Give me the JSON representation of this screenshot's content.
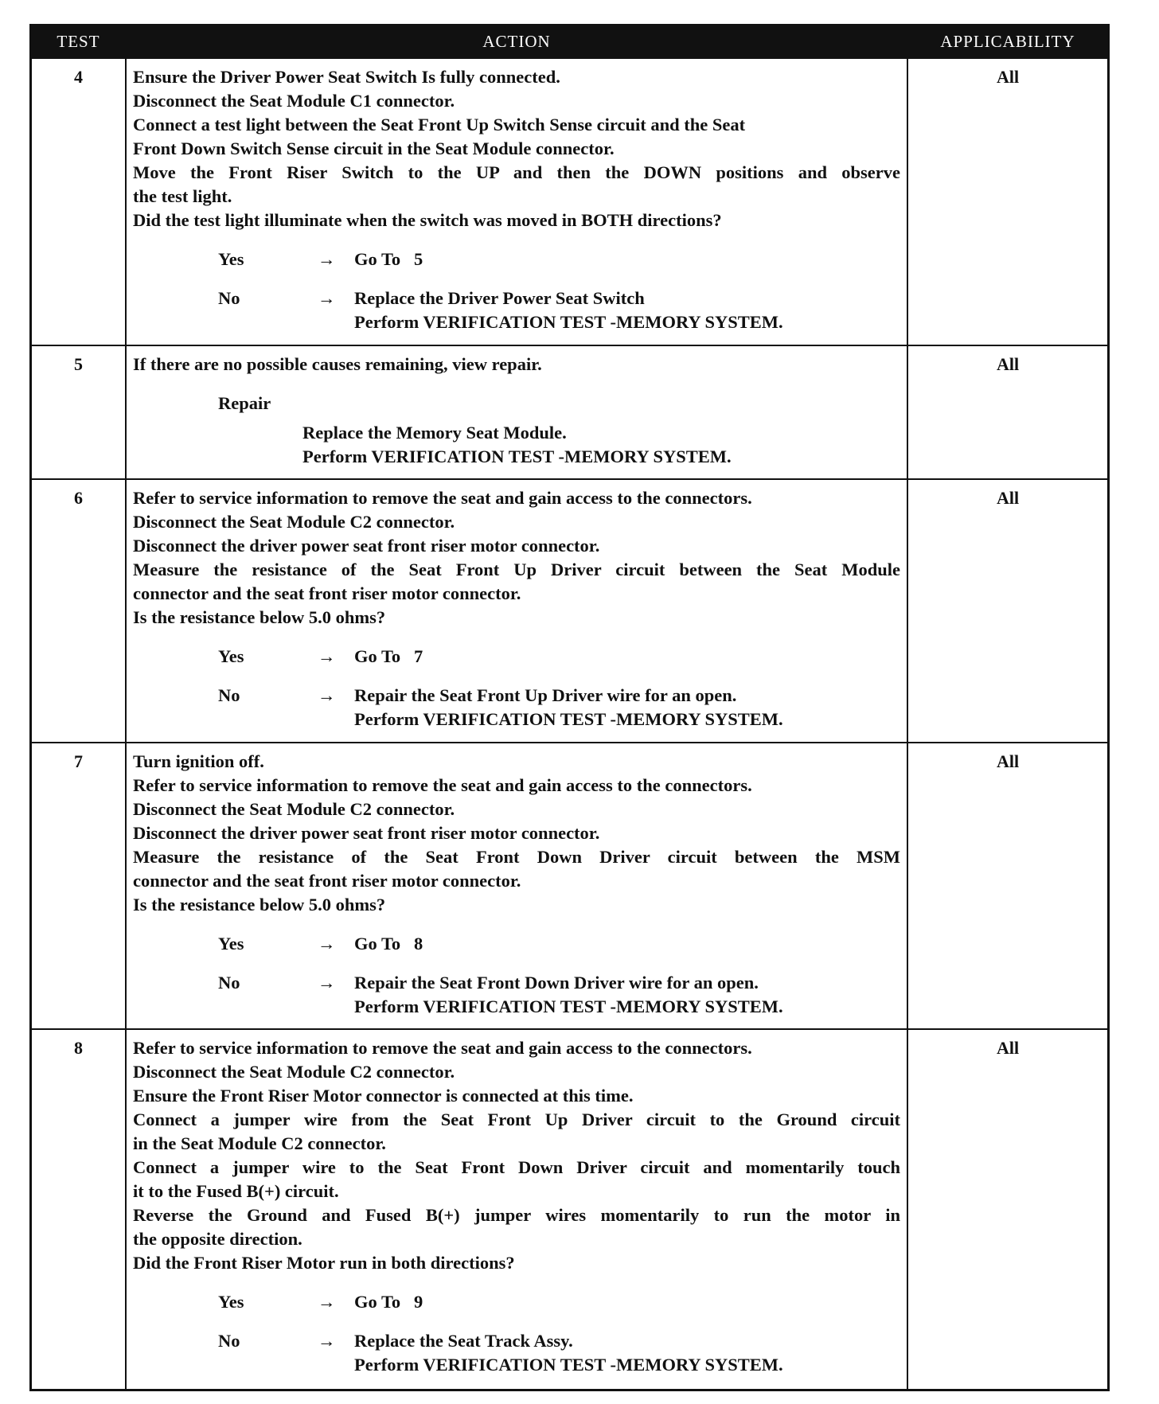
{
  "headers": {
    "test": "TEST",
    "action": "ACTION",
    "applicability": "APPLICABILITY"
  },
  "arrow": "→",
  "rows": [
    {
      "test": "4",
      "applicability": "All",
      "lines": [
        "Ensure the Driver Power Seat Switch Is fully connected.",
        "Disconnect the Seat Module C1 connector.",
        "Connect a test light between the Seat Front Up Switch Sense circuit and the Seat",
        "Front Down Switch Sense circuit in the Seat Module connector.",
        "Move the Front Riser Switch to the UP and then the DOWN positions and observe",
        "the test light.",
        "Did the test light illuminate when the switch was moved in BOTH directions?"
      ],
      "yes": {
        "label": "Yes",
        "result": [
          "Go To   5"
        ]
      },
      "no": {
        "label": "No",
        "result": [
          "Replace the Driver Power Seat Switch",
          "Perform VERIFICATION TEST -MEMORY SYSTEM."
        ]
      }
    },
    {
      "test": "5",
      "applicability": "All",
      "lines": [
        "If there are no possible causes remaining, view repair."
      ],
      "repair": {
        "label": "Repair",
        "result": [
          "Replace the Memory Seat Module.",
          "Perform VERIFICATION TEST -MEMORY SYSTEM."
        ]
      }
    },
    {
      "test": "6",
      "applicability": "All",
      "lines": [
        "Refer to service information to remove the seat and gain access to the connectors.",
        "Disconnect the Seat Module C2 connector.",
        "Disconnect the driver power seat front riser motor connector.",
        "Measure the resistance of the Seat Front Up Driver circuit between the Seat Module",
        "connector and the seat front riser motor connector.",
        "Is the resistance below 5.0 ohms?"
      ],
      "yes": {
        "label": "Yes",
        "result": [
          "Go To   7"
        ]
      },
      "no": {
        "label": "No",
        "result": [
          "Repair the Seat Front Up Driver wire for an open.",
          "Perform VERIFICATION TEST -MEMORY SYSTEM."
        ]
      }
    },
    {
      "test": "7",
      "applicability": "All",
      "lines": [
        "Turn ignition off.",
        "Refer to service information to remove the seat and gain access to the connectors.",
        "Disconnect the Seat Module C2 connector.",
        "Disconnect the driver power seat front riser motor connector.",
        "Measure the resistance of the Seat Front Down Driver circuit between the MSM",
        "connector and the seat front riser motor connector.",
        "Is the resistance below 5.0 ohms?"
      ],
      "yes": {
        "label": "Yes",
        "result": [
          "Go To   8"
        ]
      },
      "no": {
        "label": "No",
        "result": [
          "Repair the Seat Front Down Driver wire for an open.",
          "Perform VERIFICATION TEST -MEMORY SYSTEM."
        ]
      }
    },
    {
      "test": "8",
      "applicability": "All",
      "lines": [
        "Refer to service information to remove the seat and gain access to the connectors.",
        "Disconnect the Seat Module C2 connector.",
        "Ensure the Front Riser Motor connector is connected at this time.",
        "Connect a jumper wire from the Seat Front Up Driver circuit to the Ground circuit",
        "in the Seat Module C2 connector.",
        "Connect a jumper wire to the Seat Front Down Driver circuit and momentarily touch",
        "it to the Fused B(+) circuit.",
        "Reverse the Ground and Fused B(+) jumper wires momentarily to run the motor in",
        "the opposite direction.",
        "Did the Front Riser Motor run in both directions?"
      ],
      "yes": {
        "label": "Yes",
        "result": [
          "Go To   9"
        ]
      },
      "no": {
        "label": "No",
        "result": [
          "Replace the Seat Track Assy.",
          "Perform VERIFICATION TEST -MEMORY SYSTEM."
        ]
      }
    }
  ]
}
